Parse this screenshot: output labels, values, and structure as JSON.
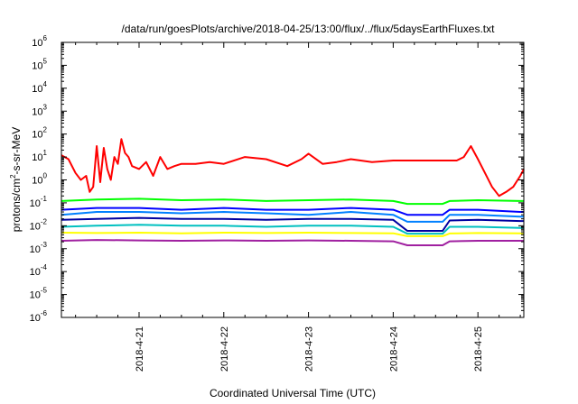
{
  "chart_data": {
    "type": "line",
    "title": "/data/run/goesPlots/archive/2018-04-25/13:00/flux/../flux/5daysEarthFluxes.txt",
    "xlabel": "Coordinated Universal Time (UTC)",
    "ylabel": "protons/cm²-s-sr-MeV",
    "ylabel_parts": {
      "pre": "protons/cm",
      "sup": "2",
      "post": "-s-sr-MeV"
    },
    "y_scale": "log",
    "ylim": [
      1e-06,
      1000000.0
    ],
    "y_ticks": [
      {
        "base": "10",
        "exp": "-6"
      },
      {
        "base": "10",
        "exp": "-5"
      },
      {
        "base": "10",
        "exp": "-4"
      },
      {
        "base": "10",
        "exp": "-3"
      },
      {
        "base": "10",
        "exp": "-2"
      },
      {
        "base": "10",
        "exp": "-1"
      },
      {
        "base": "10",
        "exp": "0"
      },
      {
        "base": "10",
        "exp": "1"
      },
      {
        "base": "10",
        "exp": "2"
      },
      {
        "base": "10",
        "exp": "3"
      },
      {
        "base": "10",
        "exp": "4"
      },
      {
        "base": "10",
        "exp": "5"
      },
      {
        "base": "10",
        "exp": "6"
      }
    ],
    "xlim": [
      "2018-04-20 02:00",
      "2018-04-25 13:00"
    ],
    "x_ticks": [
      "2018-4-21",
      "2018-4-22",
      "2018-4-23",
      "2018-4-24",
      "2018-4-25"
    ],
    "grid": false,
    "legend": "none",
    "series": [
      {
        "color": "#ff0000",
        "x": [
          "2018-04-20 02:00",
          "2018-04-20 04:00",
          "2018-04-20 06:00",
          "2018-04-20 07:30",
          "2018-04-20 09:00",
          "2018-04-20 10:00",
          "2018-04-20 11:00",
          "2018-04-20 12:00",
          "2018-04-20 13:00",
          "2018-04-20 14:00",
          "2018-04-20 15:00",
          "2018-04-20 16:00",
          "2018-04-20 17:00",
          "2018-04-20 18:00",
          "2018-04-20 19:00",
          "2018-04-20 20:00",
          "2018-04-20 21:00",
          "2018-04-20 22:00",
          "2018-04-21 00:00",
          "2018-04-21 02:00",
          "2018-04-21 04:00",
          "2018-04-21 06:00",
          "2018-04-21 08:00",
          "2018-04-21 10:00",
          "2018-04-21 12:00",
          "2018-04-21 16:00",
          "2018-04-21 20:00",
          "2018-04-22 00:00",
          "2018-04-22 06:00",
          "2018-04-22 12:00",
          "2018-04-22 18:00",
          "2018-04-22 22:00",
          "2018-04-23 00:00",
          "2018-04-23 04:00",
          "2018-04-23 08:00",
          "2018-04-23 12:00",
          "2018-04-23 18:00",
          "2018-04-24 00:00",
          "2018-04-24 06:00",
          "2018-04-24 12:00",
          "2018-04-24 18:00",
          "2018-04-24 20:00",
          "2018-04-24 22:00",
          "2018-04-25 00:00",
          "2018-04-25 02:00",
          "2018-04-25 04:00",
          "2018-04-25 06:00",
          "2018-04-25 08:00",
          "2018-04-25 10:00",
          "2018-04-25 12:00",
          "2018-04-25 13:00"
        ],
        "y": [
          12,
          8,
          2,
          1,
          1.5,
          0.3,
          0.5,
          30,
          0.8,
          25,
          3,
          1,
          10,
          5,
          60,
          15,
          10,
          4,
          3,
          6,
          1.5,
          10,
          3,
          4,
          5,
          5,
          6,
          5,
          10,
          8,
          4,
          8,
          14,
          5,
          6,
          8,
          6,
          7,
          7,
          7,
          7,
          10,
          30,
          8,
          2,
          0.5,
          0.2,
          0.3,
          0.5,
          1.5,
          3
        ]
      },
      {
        "color": "#00ff00",
        "x": [
          "2018-04-20 02:00",
          "2018-04-20 12:00",
          "2018-04-21 00:00",
          "2018-04-21 12:00",
          "2018-04-22 00:00",
          "2018-04-22 12:00",
          "2018-04-23 00:00",
          "2018-04-23 12:00",
          "2018-04-24 00:00",
          "2018-04-24 04:00",
          "2018-04-24 14:00",
          "2018-04-24 16:00",
          "2018-04-25 00:00",
          "2018-04-25 12:00",
          "2018-04-25 13:00"
        ],
        "y": [
          0.12,
          0.14,
          0.15,
          0.13,
          0.14,
          0.12,
          0.13,
          0.14,
          0.12,
          0.09,
          0.09,
          0.12,
          0.13,
          0.12,
          0.12
        ]
      },
      {
        "color": "#0000ff",
        "x": [
          "2018-04-20 02:00",
          "2018-04-20 12:00",
          "2018-04-21 00:00",
          "2018-04-21 12:00",
          "2018-04-22 00:00",
          "2018-04-22 12:00",
          "2018-04-23 00:00",
          "2018-04-23 12:00",
          "2018-04-24 00:00",
          "2018-04-24 04:00",
          "2018-04-24 14:00",
          "2018-04-24 16:00",
          "2018-04-25 00:00",
          "2018-04-25 12:00",
          "2018-04-25 13:00"
        ],
        "y": [
          0.05,
          0.06,
          0.06,
          0.05,
          0.06,
          0.05,
          0.05,
          0.06,
          0.05,
          0.03,
          0.03,
          0.05,
          0.05,
          0.04,
          0.04
        ]
      },
      {
        "color": "#0080ff",
        "x": [
          "2018-04-20 02:00",
          "2018-04-20 12:00",
          "2018-04-21 00:00",
          "2018-04-21 12:00",
          "2018-04-22 00:00",
          "2018-04-22 12:00",
          "2018-04-23 00:00",
          "2018-04-23 12:00",
          "2018-04-24 00:00",
          "2018-04-24 04:00",
          "2018-04-24 14:00",
          "2018-04-24 16:00",
          "2018-04-25 00:00",
          "2018-04-25 12:00",
          "2018-04-25 13:00"
        ],
        "y": [
          0.03,
          0.04,
          0.04,
          0.035,
          0.04,
          0.035,
          0.03,
          0.04,
          0.03,
          0.015,
          0.015,
          0.03,
          0.03,
          0.025,
          0.025
        ]
      },
      {
        "color": "#0000a0",
        "x": [
          "2018-04-20 02:00",
          "2018-04-20 12:00",
          "2018-04-21 00:00",
          "2018-04-21 12:00",
          "2018-04-22 00:00",
          "2018-04-22 12:00",
          "2018-04-23 00:00",
          "2018-04-23 12:00",
          "2018-04-24 00:00",
          "2018-04-24 04:00",
          "2018-04-24 14:00",
          "2018-04-24 16:00",
          "2018-04-25 00:00",
          "2018-04-25 12:00",
          "2018-04-25 13:00"
        ],
        "y": [
          0.018,
          0.02,
          0.022,
          0.02,
          0.02,
          0.018,
          0.02,
          0.02,
          0.018,
          0.006,
          0.006,
          0.017,
          0.018,
          0.016,
          0.016
        ]
      },
      {
        "color": "#00c0c0",
        "x": [
          "2018-04-20 02:00",
          "2018-04-20 12:00",
          "2018-04-21 00:00",
          "2018-04-21 12:00",
          "2018-04-22 00:00",
          "2018-04-22 12:00",
          "2018-04-23 00:00",
          "2018-04-23 12:00",
          "2018-04-24 00:00",
          "2018-04-24 04:00",
          "2018-04-24 14:00",
          "2018-04-24 16:00",
          "2018-04-25 00:00",
          "2018-04-25 12:00",
          "2018-04-25 13:00"
        ],
        "y": [
          0.009,
          0.01,
          0.011,
          0.01,
          0.01,
          0.009,
          0.01,
          0.01,
          0.009,
          0.0045,
          0.0045,
          0.009,
          0.009,
          0.008,
          0.008
        ]
      },
      {
        "color": "#ffff00",
        "x": [
          "2018-04-20 02:00",
          "2018-04-20 12:00",
          "2018-04-21 00:00",
          "2018-04-21 12:00",
          "2018-04-22 00:00",
          "2018-04-22 12:00",
          "2018-04-23 00:00",
          "2018-04-23 12:00",
          "2018-04-24 00:00",
          "2018-04-24 04:00",
          "2018-04-24 14:00",
          "2018-04-24 16:00",
          "2018-04-25 00:00",
          "2018-04-25 12:00",
          "2018-04-25 13:00"
        ],
        "y": [
          0.005,
          0.0048,
          0.005,
          0.0047,
          0.005,
          0.0048,
          0.005,
          0.0048,
          0.0047,
          0.0035,
          0.0035,
          0.0046,
          0.0048,
          0.0047,
          0.0047
        ]
      },
      {
        "color": "#a020a0",
        "x": [
          "2018-04-20 02:00",
          "2018-04-20 12:00",
          "2018-04-21 00:00",
          "2018-04-21 12:00",
          "2018-04-22 00:00",
          "2018-04-22 12:00",
          "2018-04-23 00:00",
          "2018-04-23 12:00",
          "2018-04-24 00:00",
          "2018-04-24 04:00",
          "2018-04-24 14:00",
          "2018-04-24 16:00",
          "2018-04-25 00:00",
          "2018-04-25 12:00",
          "2018-04-25 13:00"
        ],
        "y": [
          0.0022,
          0.0024,
          0.0023,
          0.0022,
          0.0023,
          0.0022,
          0.0023,
          0.0022,
          0.0021,
          0.0014,
          0.0014,
          0.0021,
          0.0022,
          0.0022,
          0.0022
        ]
      }
    ]
  }
}
